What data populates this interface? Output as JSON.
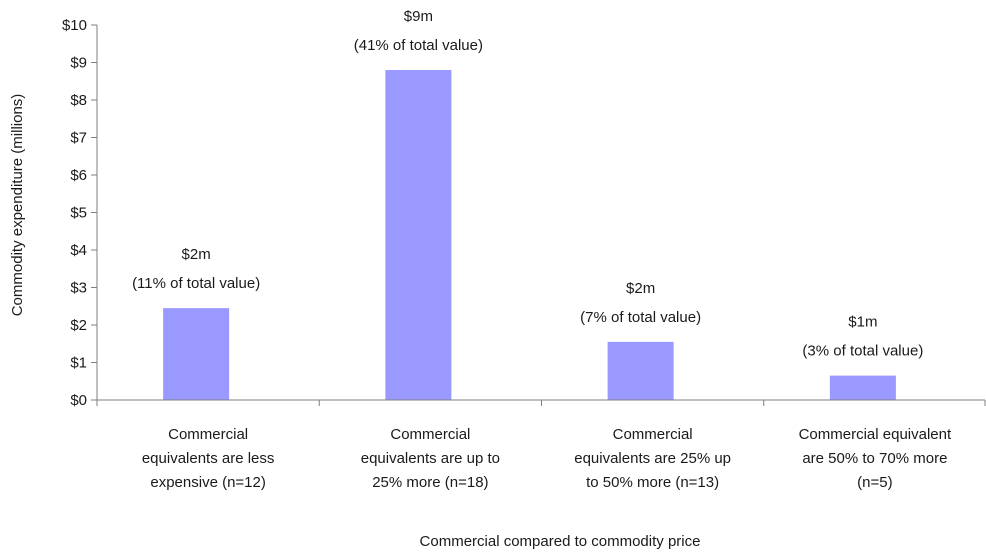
{
  "chart_data": {
    "type": "bar",
    "title": "",
    "xlabel": "Commercial compared to commodity price",
    "ylabel": "Commodity expenditure (millions)",
    "ylim": [
      0,
      10
    ],
    "y_ticks": [
      "$0",
      "$1",
      "$2",
      "$3",
      "$4",
      "$5",
      "$6",
      "$7",
      "$8",
      "$9",
      "$10"
    ],
    "grid": false,
    "legend": "none",
    "bar_color": "#9999ff",
    "categories": [
      [
        "Commercial",
        "equivalents are less",
        "expensive (n=12)"
      ],
      [
        "Commercial",
        "equivalents are up to",
        "25% more (n=18)"
      ],
      [
        "Commercial",
        "equivalents are 25% up",
        "to 50% more (n=13)"
      ],
      [
        "Commercial equivalent",
        "are 50% to 70% more",
        "(n=5)"
      ]
    ],
    "values": [
      2.45,
      8.8,
      1.55,
      0.65
    ],
    "data_labels": [
      [
        "$2m",
        "(11% of total value)"
      ],
      [
        "$9m",
        "(41% of total value)"
      ],
      [
        "$2m",
        "(7% of total value)"
      ],
      [
        "$1m",
        "(3% of total value)"
      ]
    ]
  }
}
